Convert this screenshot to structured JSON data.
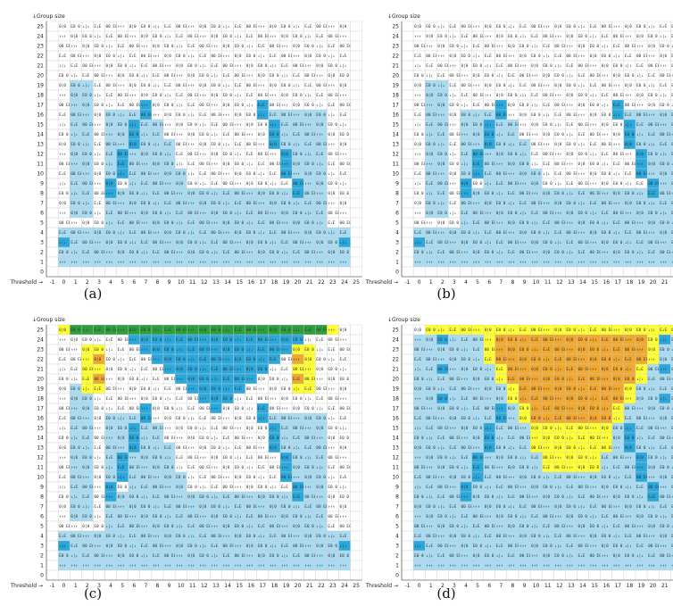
{
  "panels": [
    {
      "caption": "(a)",
      "highlight": "none"
    },
    {
      "caption": "(b)",
      "highlight": "none"
    },
    {
      "caption": "(c)",
      "highlight": "top"
    },
    {
      "caption": "(d)",
      "highlight": "wedge"
    }
  ],
  "chart_data": {
    "type": "heatmap",
    "ylabel": "↓Group size",
    "xlabel": "Threshold →",
    "x_ticks": [
      -1,
      0,
      1,
      2,
      3,
      4,
      5,
      6,
      7,
      8,
      9,
      10,
      11,
      12,
      13,
      14,
      15,
      16,
      17,
      18,
      19,
      20,
      21,
      22,
      23,
      24,
      25
    ],
    "y_ticks": [
      0,
      1,
      2,
      3,
      4,
      5,
      6,
      7,
      8,
      9,
      10,
      11,
      12,
      13,
      14,
      15,
      16,
      17,
      18,
      19,
      20,
      21,
      22,
      23,
      24,
      25
    ],
    "xlim": [
      -1,
      25
    ],
    "ylim": [
      0,
      25
    ],
    "colors": {
      "blue_region": "#a9dcf2",
      "boundary_cell": "#2aa8dc",
      "yellow": "#ffff33",
      "orange": "#f0a830",
      "green": "#2e9e3e",
      "grid": "#c8c8c8"
    }
  }
}
